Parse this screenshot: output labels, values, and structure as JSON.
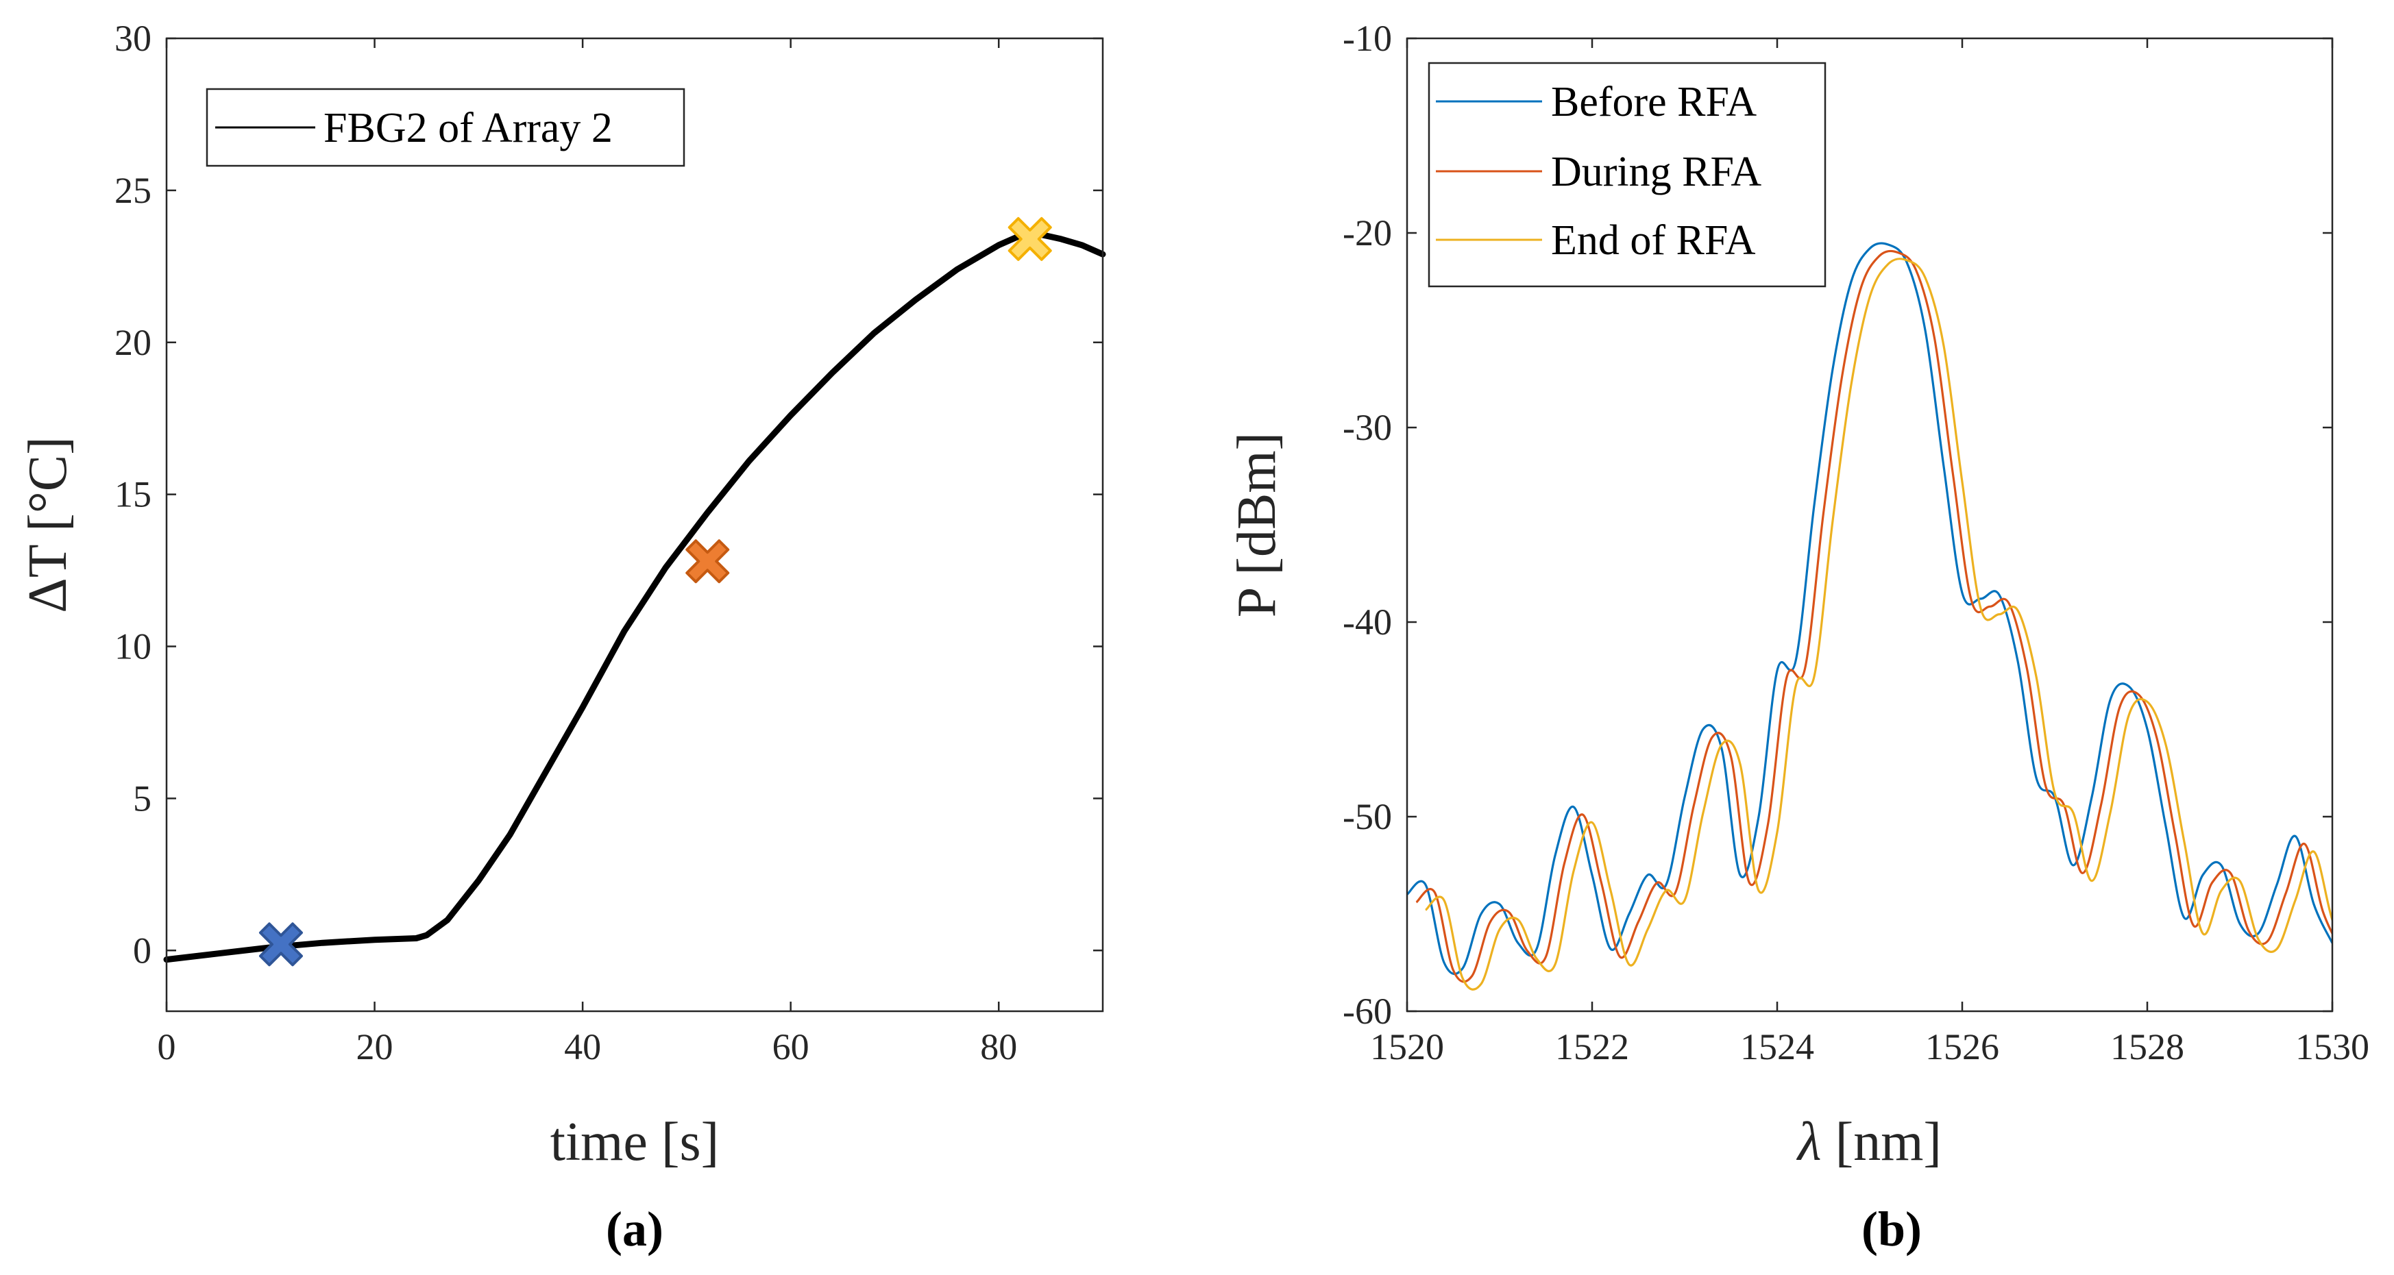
{
  "chart_data": [
    {
      "type": "line",
      "panel_label": "(a)",
      "xlabel": "time [s]",
      "ylabel_symbol": "Δ",
      "ylabel_rest": "T [°C]",
      "xlim": [
        0,
        90
      ],
      "ylim": [
        -2,
        30
      ],
      "xticks": [
        0,
        20,
        40,
        60,
        80
      ],
      "yticks": [
        0,
        5,
        10,
        15,
        20,
        25,
        30
      ],
      "legend": {
        "position": "top-left",
        "entries": [
          "FBG2 of Array 2"
        ]
      },
      "series": [
        {
          "name": "FBG2 of Array 2",
          "color": "#000000",
          "x": [
            0,
            5,
            10,
            15,
            20,
            24,
            25,
            27,
            30,
            33,
            36,
            40,
            44,
            48,
            52,
            56,
            60,
            64,
            68,
            72,
            76,
            80,
            82,
            84,
            86,
            88,
            90
          ],
          "y": [
            -0.3,
            -0.1,
            0.1,
            0.25,
            0.35,
            0.4,
            0.5,
            1.0,
            2.3,
            3.8,
            5.6,
            8.0,
            10.5,
            12.6,
            14.4,
            16.1,
            17.6,
            19.0,
            20.3,
            21.4,
            22.4,
            23.2,
            23.5,
            23.55,
            23.4,
            23.2,
            22.9
          ]
        }
      ],
      "markers": [
        {
          "x": 11,
          "y": 0.2,
          "color": "#4472c4",
          "border": "#2f5597"
        },
        {
          "x": 52,
          "y": 12.8,
          "color": "#ed7d31",
          "border": "#c55a11"
        },
        {
          "x": 83,
          "y": 23.4,
          "color": "#ffd966",
          "border": "#f4b000"
        }
      ]
    },
    {
      "type": "line",
      "panel_label": "(b)",
      "xlabel_symbol": "λ",
      "xlabel_rest": " [nm]",
      "ylabel": "P [dBm]",
      "xlim": [
        1520,
        1530
      ],
      "ylim": [
        -60,
        -10
      ],
      "xticks": [
        1520,
        1522,
        1524,
        1526,
        1528,
        1530
      ],
      "yticks": [
        -10,
        -20,
        -30,
        -40,
        -50,
        -60
      ],
      "legend": {
        "position": "top-left",
        "entries": [
          "Before RFA",
          "During RFA",
          "End of RFA"
        ]
      },
      "base_curve": {
        "x": [
          1520,
          1520.2,
          1520.4,
          1520.6,
          1520.8,
          1521,
          1521.2,
          1521.4,
          1521.6,
          1521.8,
          1522,
          1522.2,
          1522.4,
          1522.6,
          1522.8,
          1523,
          1523.2,
          1523.4,
          1523.6,
          1523.8,
          1524,
          1524.2,
          1524.4,
          1524.6,
          1524.8,
          1525,
          1525.2,
          1525.4,
          1525.6,
          1525.8,
          1526,
          1526.2,
          1526.4,
          1526.6,
          1526.8,
          1527,
          1527.2,
          1527.4,
          1527.6,
          1527.8,
          1528,
          1528.2,
          1528.4,
          1528.6,
          1528.8,
          1529,
          1529.2,
          1529.4,
          1529.6,
          1529.8,
          1530
        ],
        "y": [
          -54,
          -53.5,
          -57.5,
          -57.8,
          -55,
          -54.5,
          -56.5,
          -56.8,
          -52,
          -49.5,
          -53,
          -56.8,
          -55,
          -53,
          -53.5,
          -49,
          -45.5,
          -46.5,
          -53,
          -50,
          -42.5,
          -42,
          -34,
          -27,
          -22.5,
          -20.8,
          -20.6,
          -21.5,
          -25,
          -32,
          -38.5,
          -38.8,
          -38.6,
          -42,
          -48,
          -49,
          -52.5,
          -49,
          -44,
          -43.3,
          -45.5,
          -50.5,
          -55.2,
          -53,
          -52.5,
          -55.5,
          -56,
          -53.5,
          -51,
          -54.5,
          -56.5
        ]
      },
      "series": [
        {
          "name": "Before RFA",
          "color": "#0072bd",
          "shift": 0.0
        },
        {
          "name": "During RFA",
          "color": "#d95319",
          "shift": 0.1
        },
        {
          "name": "End of RFA",
          "color": "#edb120",
          "shift": 0.2
        }
      ]
    }
  ]
}
